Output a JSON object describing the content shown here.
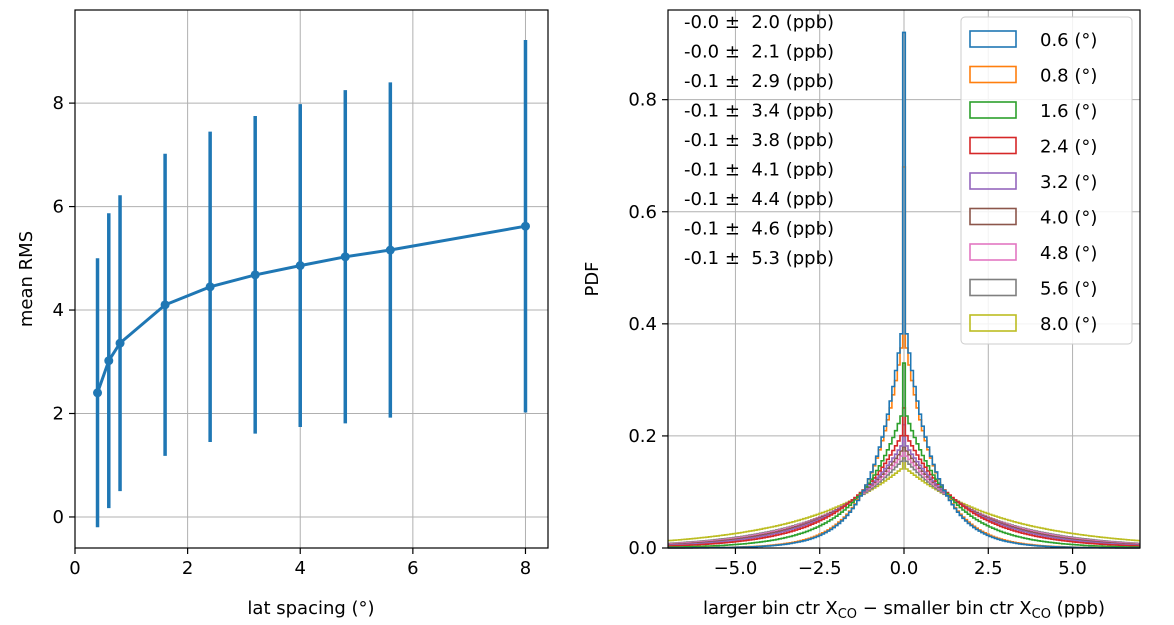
{
  "colors": {
    "series": [
      "#1f77b4",
      "#ff7f0e",
      "#2ca02c",
      "#d62728",
      "#9467bd",
      "#8c564b",
      "#e377c2",
      "#7f7f7f",
      "#bcbd22"
    ],
    "grid": "#b0b0b0"
  },
  "chart_data": [
    {
      "type": "line",
      "xlabel": "lat spacing (°)",
      "ylabel": "mean RMS",
      "xlim": [
        0,
        8.4
      ],
      "ylim": [
        -0.6,
        9.8
      ],
      "xticks": [
        0,
        2,
        4,
        6,
        8
      ],
      "yticks": [
        0,
        2,
        4,
        6,
        8
      ],
      "grid": true,
      "x": [
        0.4,
        0.6,
        0.8,
        1.6,
        2.4,
        3.2,
        4.0,
        4.8,
        5.6,
        8.0
      ],
      "y": [
        2.4,
        3.02,
        3.36,
        4.1,
        4.45,
        4.68,
        4.86,
        5.03,
        5.16,
        5.62
      ],
      "yerr": [
        2.6,
        2.85,
        2.86,
        2.92,
        3.0,
        3.07,
        3.12,
        3.22,
        3.24,
        3.6
      ],
      "color": "#1f77b4"
    },
    {
      "type": "area",
      "style": "step-histogram",
      "xlabel": "larger bin ctr X",
      "xlabel_sub": "CO",
      "xlabel_mid": " − smaller bin ctr X",
      "xlabel_sub2": "CO",
      "xlabel_end": " (ppb)",
      "ylabel": "PDF",
      "xlim": [
        -7,
        7
      ],
      "ylim": [
        0,
        0.96
      ],
      "xticks": [
        -5.0,
        -2.5,
        0.0,
        2.5,
        5.0
      ],
      "xtick_labels": [
        "−5.0",
        "−2.5",
        "0.0",
        "2.5",
        "5.0"
      ],
      "yticks": [
        0.0,
        0.2,
        0.4,
        0.6,
        0.8
      ],
      "ytick_labels": [
        "0.0",
        "0.2",
        "0.4",
        "0.6",
        "0.8"
      ],
      "grid": true,
      "legend_position": "top-right",
      "series": [
        {
          "name": "0.6 (°)",
          "peak": 0.92,
          "core": 0.42,
          "scale": 0.85
        },
        {
          "name": "0.8 (°)",
          "peak": 0.68,
          "core": 0.39,
          "scale": 0.9
        },
        {
          "name": "1.6 (°)",
          "peak": 0.33,
          "core": 0.25,
          "scale": 1.35
        },
        {
          "name": "2.4 (°)",
          "peak": 0.25,
          "core": 0.21,
          "scale": 1.7
        },
        {
          "name": "3.2 (°)",
          "peak": 0.22,
          "core": 0.19,
          "scale": 1.9
        },
        {
          "name": "4.0 (°)",
          "peak": 0.2,
          "core": 0.18,
          "scale": 2.05
        },
        {
          "name": "4.8 (°)",
          "peak": 0.19,
          "core": 0.17,
          "scale": 2.2
        },
        {
          "name": "5.6 (°)",
          "peak": 0.18,
          "core": 0.16,
          "scale": 2.35
        },
        {
          "name": "8.0 (°)",
          "peak": 0.16,
          "core": 0.145,
          "scale": 2.9
        }
      ],
      "annotations": [
        "-0.0 ±  2.0 (ppb)",
        "-0.0 ±  2.1 (ppb)",
        "-0.1 ±  2.9 (ppb)",
        "-0.1 ±  3.4 (ppb)",
        "-0.1 ±  3.8 (ppb)",
        "-0.1 ±  4.1 (ppb)",
        "-0.1 ±  4.4 (ppb)",
        "-0.1 ±  4.6 (ppb)",
        "-0.1 ±  5.3 (ppb)"
      ]
    }
  ]
}
